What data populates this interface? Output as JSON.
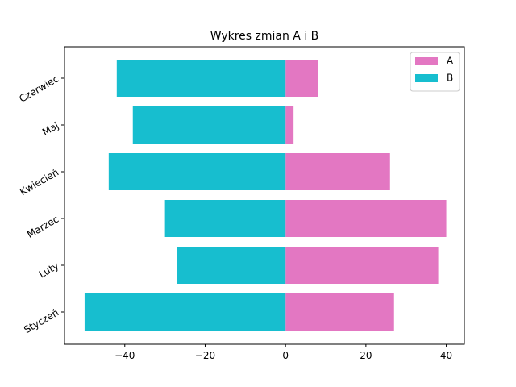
{
  "chart_data": {
    "type": "bar",
    "orientation": "horizontal",
    "title": "Wykres zmian A i B",
    "categories": [
      "Styczeń",
      "Luty",
      "Marzec",
      "Kwiecień",
      "Maj",
      "Czerwiec"
    ],
    "series": [
      {
        "name": "A",
        "color": "#e377c2",
        "values": [
          27,
          38,
          40,
          26,
          2,
          8
        ]
      },
      {
        "name": "B",
        "color": "#17becf",
        "values": [
          -50,
          -27,
          -30,
          -44,
          -38,
          -42
        ]
      }
    ],
    "x_ticks": [
      "−40",
      "−20",
      "0",
      "20",
      "40"
    ],
    "xlim": [
      -55,
      44.5
    ],
    "xlabel": "",
    "ylabel": "",
    "grid": false,
    "legend_position": "top-right"
  }
}
